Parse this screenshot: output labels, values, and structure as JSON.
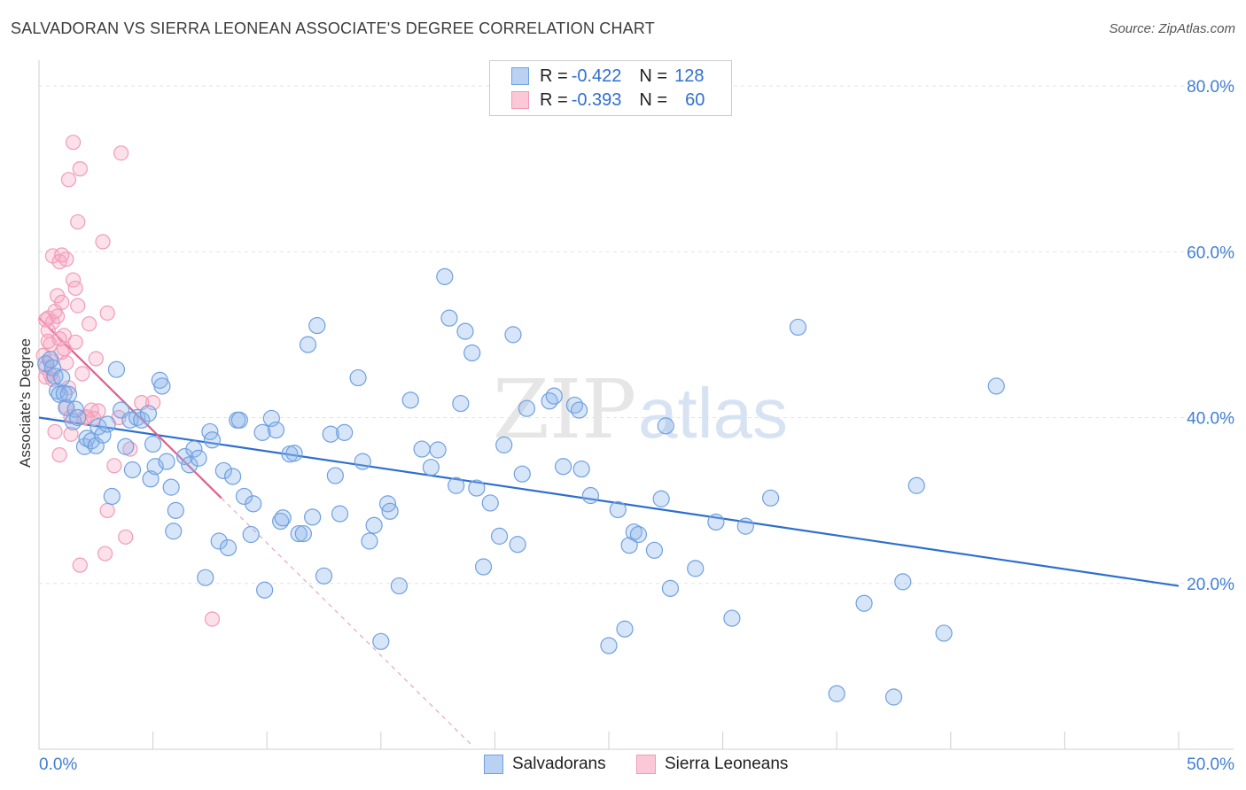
{
  "chart_data": {
    "type": "scatter",
    "title": "SALVADORAN VS SIERRA LEONEAN ASSOCIATE'S DEGREE CORRELATION CHART",
    "source": "Source: ZipAtlas.com",
    "ylabel": "Associate's Degree",
    "xlim": [
      0,
      50
    ],
    "ylim": [
      0,
      80
    ],
    "x_tick_labels": [
      "0.0%",
      "50.0%"
    ],
    "y_tick_labels": [
      "20.0%",
      "40.0%",
      "60.0%",
      "80.0%"
    ],
    "y_ticks": [
      20,
      40,
      60,
      80
    ],
    "legend": [
      {
        "r_label": "R =",
        "r_value": "-0.422",
        "n_label": "N =",
        "n_value": "128"
      },
      {
        "r_label": "R =",
        "r_value": "-0.393",
        "n_label": "N =",
        "n_value": "60"
      }
    ],
    "colors": {
      "salvadorans": "#6fa0e0",
      "sierra_leoneans": "#f29bb6",
      "blue_line": "#2d6fce",
      "pink_line": "#e0608a"
    },
    "series": [
      {
        "name": "Salvadorans",
        "trendline": {
          "x0": 0,
          "y0": 40.0,
          "x1": 50,
          "y1": 19.7
        },
        "points": [
          [
            0.3,
            46.5
          ],
          [
            0.5,
            47.0
          ],
          [
            0.6,
            46.0
          ],
          [
            0.7,
            45.0
          ],
          [
            0.8,
            43.2
          ],
          [
            0.9,
            42.8
          ],
          [
            1.0,
            44.8
          ],
          [
            1.1,
            42.9
          ],
          [
            1.2,
            41.2
          ],
          [
            1.3,
            42.8
          ],
          [
            1.5,
            39.5
          ],
          [
            1.6,
            41.0
          ],
          [
            1.7,
            40.0
          ],
          [
            2.0,
            36.5
          ],
          [
            2.1,
            37.5
          ],
          [
            2.3,
            37.2
          ],
          [
            2.5,
            36.6
          ],
          [
            2.6,
            38.9
          ],
          [
            2.8,
            37.9
          ],
          [
            3.0,
            39.2
          ],
          [
            3.2,
            30.5
          ],
          [
            3.4,
            45.8
          ],
          [
            3.6,
            40.9
          ],
          [
            3.8,
            36.5
          ],
          [
            4.0,
            39.7
          ],
          [
            4.1,
            33.7
          ],
          [
            4.3,
            40.0
          ],
          [
            4.5,
            39.7
          ],
          [
            4.8,
            40.5
          ],
          [
            4.9,
            32.6
          ],
          [
            5.0,
            36.8
          ],
          [
            5.1,
            34.1
          ],
          [
            5.3,
            44.5
          ],
          [
            5.4,
            43.8
          ],
          [
            5.6,
            34.7
          ],
          [
            5.8,
            31.6
          ],
          [
            6.0,
            28.8
          ],
          [
            5.9,
            26.3
          ],
          [
            6.4,
            35.3
          ],
          [
            6.6,
            34.3
          ],
          [
            6.8,
            36.2
          ],
          [
            7.0,
            35.1
          ],
          [
            7.3,
            20.7
          ],
          [
            7.5,
            38.3
          ],
          [
            7.6,
            37.3
          ],
          [
            7.9,
            25.1
          ],
          [
            8.1,
            33.6
          ],
          [
            8.3,
            24.3
          ],
          [
            8.5,
            32.9
          ],
          [
            8.7,
            39.7
          ],
          [
            8.8,
            39.7
          ],
          [
            9.0,
            30.5
          ],
          [
            9.3,
            25.9
          ],
          [
            9.4,
            29.6
          ],
          [
            9.8,
            38.2
          ],
          [
            9.9,
            19.2
          ],
          [
            10.2,
            39.9
          ],
          [
            10.4,
            38.5
          ],
          [
            10.6,
            27.5
          ],
          [
            10.7,
            27.9
          ],
          [
            11.0,
            35.6
          ],
          [
            11.2,
            35.7
          ],
          [
            11.4,
            26.0
          ],
          [
            11.6,
            26.0
          ],
          [
            11.8,
            48.8
          ],
          [
            12.0,
            28.0
          ],
          [
            12.2,
            51.1
          ],
          [
            12.5,
            20.9
          ],
          [
            12.8,
            38.0
          ],
          [
            13.0,
            33.0
          ],
          [
            13.2,
            28.4
          ],
          [
            13.4,
            38.2
          ],
          [
            14.0,
            44.8
          ],
          [
            14.2,
            34.7
          ],
          [
            14.5,
            25.1
          ],
          [
            14.7,
            27.0
          ],
          [
            15.0,
            13.0
          ],
          [
            15.3,
            29.6
          ],
          [
            15.4,
            28.7
          ],
          [
            15.8,
            19.7
          ],
          [
            16.3,
            42.1
          ],
          [
            16.8,
            36.2
          ],
          [
            17.2,
            34.0
          ],
          [
            17.5,
            36.1
          ],
          [
            17.8,
            57.0
          ],
          [
            18.0,
            52.0
          ],
          [
            18.3,
            31.8
          ],
          [
            18.5,
            41.7
          ],
          [
            18.7,
            50.4
          ],
          [
            19.0,
            47.8
          ],
          [
            19.2,
            31.5
          ],
          [
            19.5,
            22.0
          ],
          [
            19.8,
            29.7
          ],
          [
            20.2,
            25.7
          ],
          [
            20.4,
            36.7
          ],
          [
            20.8,
            50.0
          ],
          [
            21.0,
            24.7
          ],
          [
            21.2,
            33.2
          ],
          [
            21.4,
            41.1
          ],
          [
            22.4,
            42.0
          ],
          [
            22.6,
            42.6
          ],
          [
            23.0,
            34.1
          ],
          [
            23.5,
            41.5
          ],
          [
            23.7,
            40.9
          ],
          [
            23.8,
            33.8
          ],
          [
            24.2,
            30.6
          ],
          [
            25.0,
            12.5
          ],
          [
            25.4,
            28.9
          ],
          [
            25.7,
            14.5
          ],
          [
            25.9,
            24.6
          ],
          [
            26.1,
            26.2
          ],
          [
            26.3,
            25.9
          ],
          [
            27.0,
            24.0
          ],
          [
            27.3,
            30.2
          ],
          [
            27.5,
            39.0
          ],
          [
            27.7,
            19.4
          ],
          [
            28.8,
            21.8
          ],
          [
            29.7,
            27.4
          ],
          [
            30.4,
            15.8
          ],
          [
            31.0,
            26.9
          ],
          [
            32.1,
            30.3
          ],
          [
            33.3,
            50.9
          ],
          [
            35.0,
            6.7
          ],
          [
            36.2,
            17.6
          ],
          [
            37.5,
            6.3
          ],
          [
            37.9,
            20.2
          ],
          [
            38.5,
            31.8
          ],
          [
            39.7,
            14.0
          ],
          [
            42.0,
            43.8
          ]
        ]
      },
      {
        "name": "Sierra Leoneans",
        "trendline": {
          "x0": 0,
          "y0": 52.0,
          "x1": 8.0,
          "y1": 30.3,
          "dash_to_x": 19.0
        },
        "points": [
          [
            0.2,
            47.5
          ],
          [
            0.3,
            46.0
          ],
          [
            0.3,
            44.9
          ],
          [
            0.4,
            52.0
          ],
          [
            0.4,
            50.5
          ],
          [
            0.5,
            48.8
          ],
          [
            0.5,
            45.2
          ],
          [
            0.6,
            59.5
          ],
          [
            0.6,
            51.5
          ],
          [
            0.7,
            38.3
          ],
          [
            0.8,
            54.7
          ],
          [
            0.8,
            52.2
          ],
          [
            0.9,
            58.8
          ],
          [
            0.9,
            35.5
          ],
          [
            1.0,
            59.6
          ],
          [
            1.0,
            53.9
          ],
          [
            1.1,
            49.9
          ],
          [
            1.2,
            59.1
          ],
          [
            1.2,
            46.6
          ],
          [
            1.3,
            68.7
          ],
          [
            1.3,
            43.6
          ],
          [
            1.4,
            38.0
          ],
          [
            1.5,
            73.2
          ],
          [
            1.5,
            56.6
          ],
          [
            1.6,
            55.6
          ],
          [
            1.7,
            63.6
          ],
          [
            1.7,
            53.5
          ],
          [
            1.8,
            70.0
          ],
          [
            1.8,
            22.2
          ],
          [
            1.9,
            45.3
          ],
          [
            2.0,
            40.0
          ],
          [
            2.1,
            40.1
          ],
          [
            2.2,
            51.3
          ],
          [
            2.3,
            40.9
          ],
          [
            2.5,
            47.1
          ],
          [
            2.6,
            40.8
          ],
          [
            2.8,
            61.2
          ],
          [
            2.9,
            23.6
          ],
          [
            3.0,
            52.6
          ],
          [
            3.0,
            28.8
          ],
          [
            3.3,
            34.2
          ],
          [
            3.5,
            40.0
          ],
          [
            3.6,
            71.9
          ],
          [
            3.8,
            25.6
          ],
          [
            4.0,
            36.2
          ],
          [
            4.5,
            41.8
          ],
          [
            5.0,
            41.8
          ],
          [
            7.6,
            15.7
          ],
          [
            0.3,
            51.8
          ],
          [
            0.4,
            49.2
          ],
          [
            0.5,
            46.8
          ],
          [
            0.6,
            44.6
          ],
          [
            0.7,
            52.8
          ],
          [
            0.9,
            49.5
          ],
          [
            1.0,
            47.9
          ],
          [
            1.1,
            48.3
          ],
          [
            1.2,
            41.3
          ],
          [
            1.4,
            40.1
          ],
          [
            1.6,
            49.1
          ],
          [
            2.4,
            39.9
          ]
        ]
      }
    ],
    "bottom_legend": [
      "Salvadorans",
      "Sierra Leoneans"
    ],
    "watermark": {
      "zip": "ZIP",
      "atlas": "atlas"
    }
  }
}
